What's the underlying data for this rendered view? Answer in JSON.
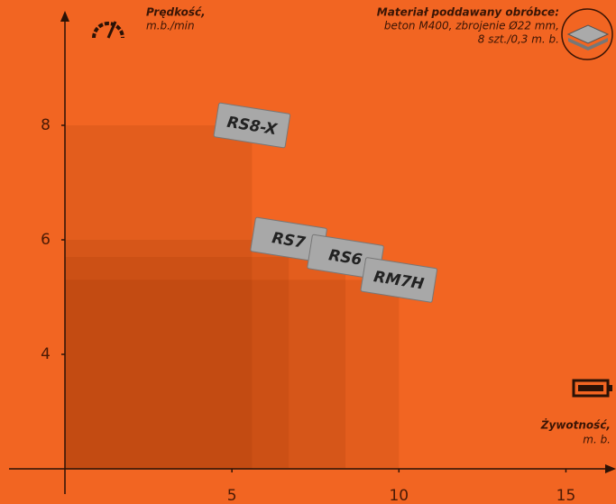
{
  "chart_data": {
    "type": "rect",
    "speed_label": "Prędkość,",
    "speed_unit": "m.b./min",
    "material_title": "Materiał poddawany obróbce:",
    "material_line1": "beton M400, zbrojenie Ø22 mm,",
    "material_line2": "8 szt./0,3 m. b.",
    "life_label": "Żywotność,",
    "life_unit": "m. b.",
    "color": "#9a3508",
    "series": [
      {
        "name": "RS8-X",
        "x": 5.6,
        "y": 8
      },
      {
        "name": "RS7",
        "x": 6.7,
        "y": 6
      },
      {
        "name": "RS6",
        "x": 8.4,
        "y": 5.7
      },
      {
        "name": "RM7H",
        "x": 10,
        "y": 5.3
      }
    ],
    "xlim": [
      0,
      16.5
    ],
    "xticks": [
      5,
      10,
      15
    ],
    "ylim": [
      2,
      10
    ],
    "yticks": [
      4,
      6,
      8
    ]
  }
}
